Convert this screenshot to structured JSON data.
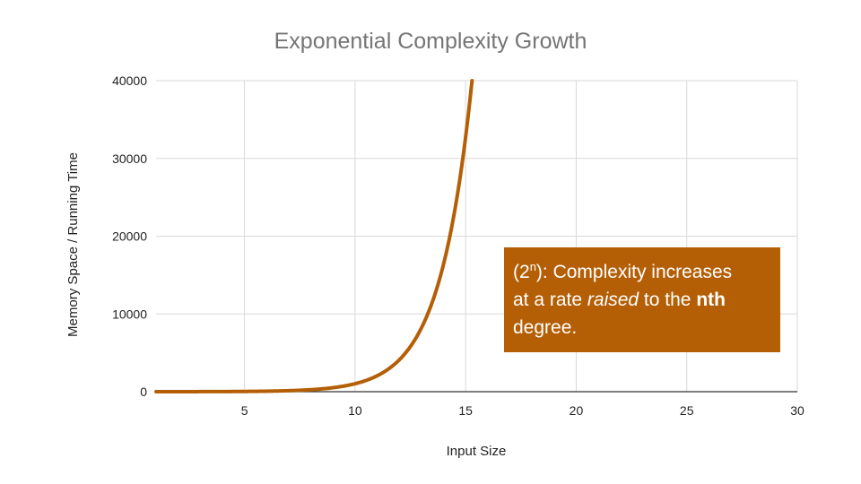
{
  "chart_data": {
    "type": "line",
    "title": "Exponential Complexity Growth",
    "xlabel": "Input Size",
    "ylabel": "Memory Space / Running Time",
    "xlim": [
      1,
      30
    ],
    "ylim": [
      0,
      40000
    ],
    "x_ticks": [
      5,
      10,
      15,
      20,
      25,
      30
    ],
    "y_ticks": [
      0,
      10000,
      20000,
      30000,
      40000
    ],
    "grid": true,
    "legend": "none",
    "series": [
      {
        "color": "#b45f06",
        "function": "2^n",
        "x": [
          1,
          2,
          3,
          4,
          5,
          6,
          7,
          8,
          9,
          10,
          11,
          12,
          13,
          14,
          15,
          15.29
        ],
        "y": [
          2,
          4,
          8,
          16,
          32,
          64,
          128,
          256,
          512,
          1024,
          2048,
          4096,
          8192,
          16384,
          32768,
          40000
        ]
      }
    ],
    "annotation": {
      "prefix": "(2",
      "superscript": "n",
      "line1_rest": "): Complexity increases",
      "line2_a": "at a rate ",
      "line2_italic": "raised",
      "line2_b": " to the ",
      "line2_bold": "nth",
      "line3": "degree.",
      "background_color": "#b45f06"
    }
  }
}
